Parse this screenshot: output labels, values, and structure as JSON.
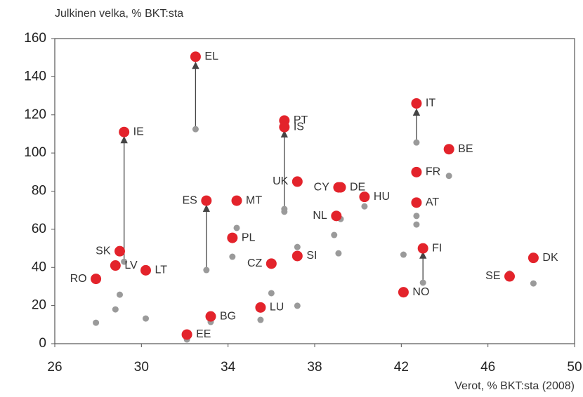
{
  "chart_data": {
    "type": "scatter",
    "y_title": "Julkinen velka, % BKT:sta",
    "x_title": "Verot, % BKT:sta (2008)",
    "xlim": [
      26,
      50
    ],
    "xticks": [
      26,
      30,
      34,
      38,
      42,
      46,
      50
    ],
    "ylim": [
      0,
      160
    ],
    "yticks": [
      0,
      20,
      40,
      60,
      80,
      100,
      120,
      140,
      160
    ],
    "grid": false,
    "series": [
      {
        "color": "#e3232b",
        "labels": [
          "EL",
          "IE",
          "PT",
          "IS",
          "IT",
          "BE",
          "FR",
          "UK",
          "CY",
          "DE",
          "HU",
          "MT",
          "ES",
          "AT",
          "NL",
          "PL",
          "SK",
          "FI",
          "SI",
          "DK",
          "LV",
          "LT",
          "CZ",
          "SE",
          "RO",
          "NO",
          "LU",
          "BG",
          "EE"
        ],
        "x": [
          32.5,
          29.2,
          36.6,
          36.6,
          42.7,
          44.2,
          42.7,
          37.2,
          39.1,
          39.2,
          40.3,
          34.4,
          33.0,
          42.7,
          39.0,
          34.2,
          29.0,
          43.0,
          37.2,
          48.1,
          28.8,
          30.2,
          36.0,
          47.0,
          27.9,
          42.1,
          35.5,
          33.2,
          32.1
        ],
        "values": [
          150.5,
          111,
          117,
          113.6,
          126,
          102,
          90,
          85,
          82,
          82,
          77,
          75,
          75,
          74,
          67,
          55.5,
          48.5,
          50,
          46,
          45,
          41,
          38.5,
          42,
          35.3,
          34,
          27,
          19,
          14.3,
          4.8
        ]
      },
      {
        "color": "#9a9a9a",
        "x": [
          32.5,
          29.2,
          36.6,
          36.6,
          42.7,
          44.2,
          42.7,
          42.7,
          40.3,
          34.4,
          33.0,
          39.2,
          38.9,
          34.2,
          37.2,
          39.1,
          29.0,
          28.8,
          30.2,
          27.9,
          36.0,
          37.2,
          35.5,
          33.2,
          32.1,
          42.1,
          43.0,
          47.0,
          48.1
        ],
        "values": [
          112.5,
          43,
          70.6,
          69.2,
          105.5,
          88,
          67,
          62.5,
          72,
          60.7,
          38.6,
          65.4,
          57,
          45.6,
          50.7,
          47.4,
          25.7,
          18,
          13.2,
          11,
          26.5,
          19.9,
          12.5,
          11.4,
          2.2,
          46.7,
          32,
          36.8,
          31.6
        ]
      }
    ],
    "arrows": [
      {
        "x": 32.5,
        "from": 112.5,
        "to": 146
      },
      {
        "x": 29.2,
        "from": 43,
        "to": 107
      },
      {
        "x": 36.6,
        "from": 70.6,
        "to": 110
      },
      {
        "x": 33.0,
        "from": 38.6,
        "to": 71
      },
      {
        "x": 42.7,
        "from": 105.5,
        "to": 121.5
      },
      {
        "x": 43.0,
        "from": 32,
        "to": 46.5
      }
    ]
  }
}
